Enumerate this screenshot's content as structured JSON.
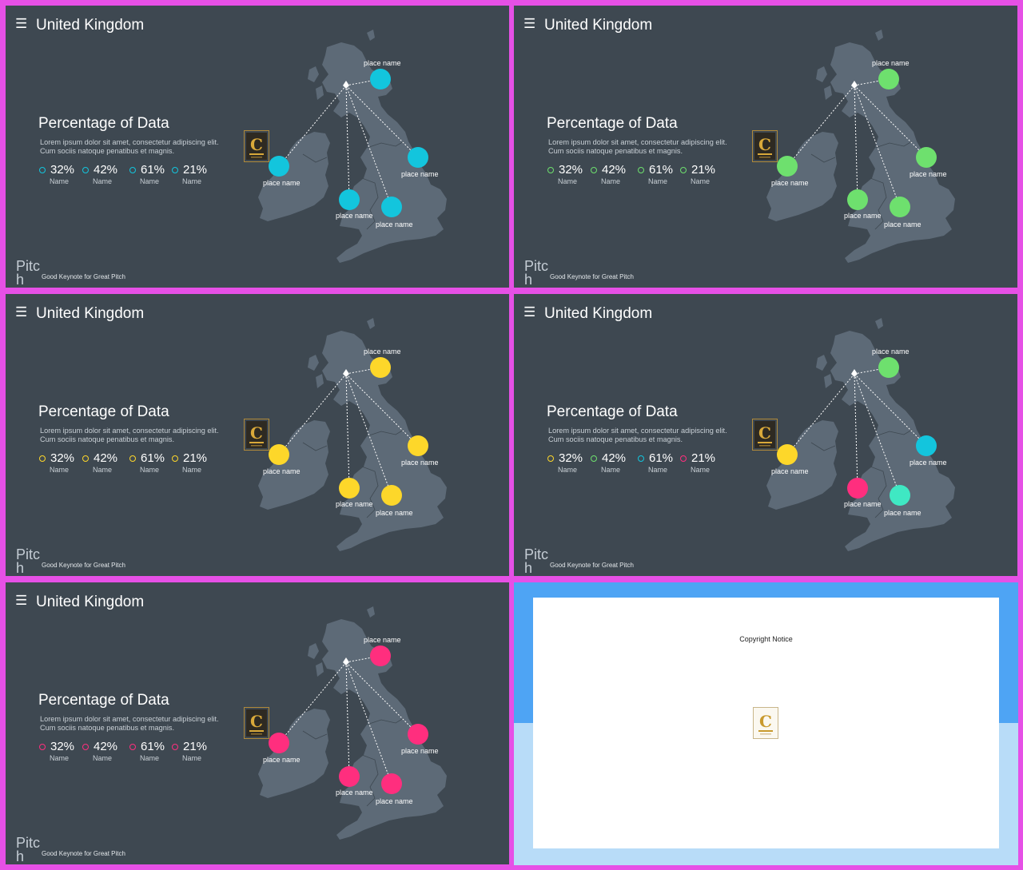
{
  "colors": {
    "background": "#3e4851",
    "frame": "#e650e6",
    "map_land": "#5d6a77",
    "cyan": "#13c5dd",
    "green": "#6ee06e",
    "yellow": "#fdd72a",
    "pink": "#ff2e7e",
    "teal": "#3fe8c3"
  },
  "slides": [
    {
      "title": "United Kingdom",
      "heading": "Percentage of Data",
      "lorem": "Lorem ipsum dolor sit amet, consectetur adipiscing elit. Cum sociis natoque penatibus et magnis.",
      "stats": [
        {
          "value": "32%",
          "name": "Name",
          "color": "#13c5dd"
        },
        {
          "value": "42%",
          "name": "Name",
          "color": "#13c5dd"
        },
        {
          "value": "61%",
          "name": "Name",
          "color": "#13c5dd"
        },
        {
          "value": "21%",
          "name": "Name",
          "color": "#13c5dd"
        }
      ],
      "places": [
        {
          "label": "place name",
          "color": "#13c5dd"
        },
        {
          "label": "place name",
          "color": "#13c5dd"
        },
        {
          "label": "place name",
          "color": "#13c5dd"
        },
        {
          "label": "place name",
          "color": "#13c5dd"
        },
        {
          "label": "place name",
          "color": "#13c5dd"
        }
      ],
      "brand": "Pitc\nh",
      "tagline": "Good Keynote for Great Pitch"
    },
    {
      "title": "United Kingdom",
      "heading": "Percentage of Data",
      "lorem": "Lorem ipsum dolor sit amet, consectetur adipiscing elit. Cum sociis natoque penatibus et magnis.",
      "stats": [
        {
          "value": "32%",
          "name": "Name",
          "color": "#6ee06e"
        },
        {
          "value": "42%",
          "name": "Name",
          "color": "#6ee06e"
        },
        {
          "value": "61%",
          "name": "Name",
          "color": "#6ee06e"
        },
        {
          "value": "21%",
          "name": "Name",
          "color": "#6ee06e"
        }
      ],
      "places": [
        {
          "label": "place name",
          "color": "#6ee06e"
        },
        {
          "label": "place name",
          "color": "#6ee06e"
        },
        {
          "label": "place name",
          "color": "#6ee06e"
        },
        {
          "label": "place name",
          "color": "#6ee06e"
        },
        {
          "label": "place name",
          "color": "#6ee06e"
        }
      ],
      "brand": "Pitc\nh",
      "tagline": "Good Keynote for Great Pitch"
    },
    {
      "title": "United Kingdom",
      "heading": "Percentage of Data",
      "lorem": "Lorem ipsum dolor sit amet, consectetur adipiscing elit. Cum sociis natoque penatibus et magnis.",
      "stats": [
        {
          "value": "32%",
          "name": "Name",
          "color": "#fdd72a"
        },
        {
          "value": "42%",
          "name": "Name",
          "color": "#fdd72a"
        },
        {
          "value": "61%",
          "name": "Name",
          "color": "#fdd72a"
        },
        {
          "value": "21%",
          "name": "Name",
          "color": "#fdd72a"
        }
      ],
      "places": [
        {
          "label": "place name",
          "color": "#fdd72a"
        },
        {
          "label": "place name",
          "color": "#fdd72a"
        },
        {
          "label": "place name",
          "color": "#fdd72a"
        },
        {
          "label": "place name",
          "color": "#fdd72a"
        },
        {
          "label": "place name",
          "color": "#fdd72a"
        }
      ],
      "brand": "Pitc\nh",
      "tagline": "Good Keynote for Great Pitch"
    },
    {
      "title": "United Kingdom",
      "heading": "Percentage of Data",
      "lorem": "Lorem ipsum dolor sit amet, consectetur adipiscing elit. Cum sociis natoque penatibus et magnis.",
      "stats": [
        {
          "value": "32%",
          "name": "Name",
          "color": "#fdd72a"
        },
        {
          "value": "42%",
          "name": "Name",
          "color": "#6ee06e"
        },
        {
          "value": "61%",
          "name": "Name",
          "color": "#13c5dd"
        },
        {
          "value": "21%",
          "name": "Name",
          "color": "#ff2e7e"
        }
      ],
      "places": [
        {
          "label": "place name",
          "color": "#6ee06e"
        },
        {
          "label": "place name",
          "color": "#fdd72a"
        },
        {
          "label": "place name",
          "color": "#13c5dd"
        },
        {
          "label": "place name",
          "color": "#ff2e7e"
        },
        {
          "label": "place name",
          "color": "#3fe8c3"
        }
      ],
      "brand": "Pitc\nh",
      "tagline": "Good Keynote for Great Pitch"
    },
    {
      "title": "United Kingdom",
      "heading": "Percentage of Data",
      "lorem": "Lorem ipsum dolor sit amet, consectetur adipiscing elit. Cum sociis natoque penatibus et magnis.",
      "stats": [
        {
          "value": "32%",
          "name": "Name",
          "color": "#ff2e7e"
        },
        {
          "value": "42%",
          "name": "Name",
          "color": "#ff2e7e"
        },
        {
          "value": "61%",
          "name": "Name",
          "color": "#ff2e7e"
        },
        {
          "value": "21%",
          "name": "Name",
          "color": "#ff2e7e"
        }
      ],
      "places": [
        {
          "label": "place name",
          "color": "#ff2e7e"
        },
        {
          "label": "place name",
          "color": "#ff2e7e"
        },
        {
          "label": "place name",
          "color": "#ff2e7e"
        },
        {
          "label": "place name",
          "color": "#ff2e7e"
        },
        {
          "label": "place name",
          "color": "#ff2e7e"
        }
      ],
      "brand": "Pitc\nh",
      "tagline": "Good Keynote for Great Pitch"
    }
  ],
  "copyright": {
    "notice": "Copyright Notice"
  },
  "icons": {
    "menu": "hamburger-menu-icon",
    "logo": "contents-c-logo"
  }
}
